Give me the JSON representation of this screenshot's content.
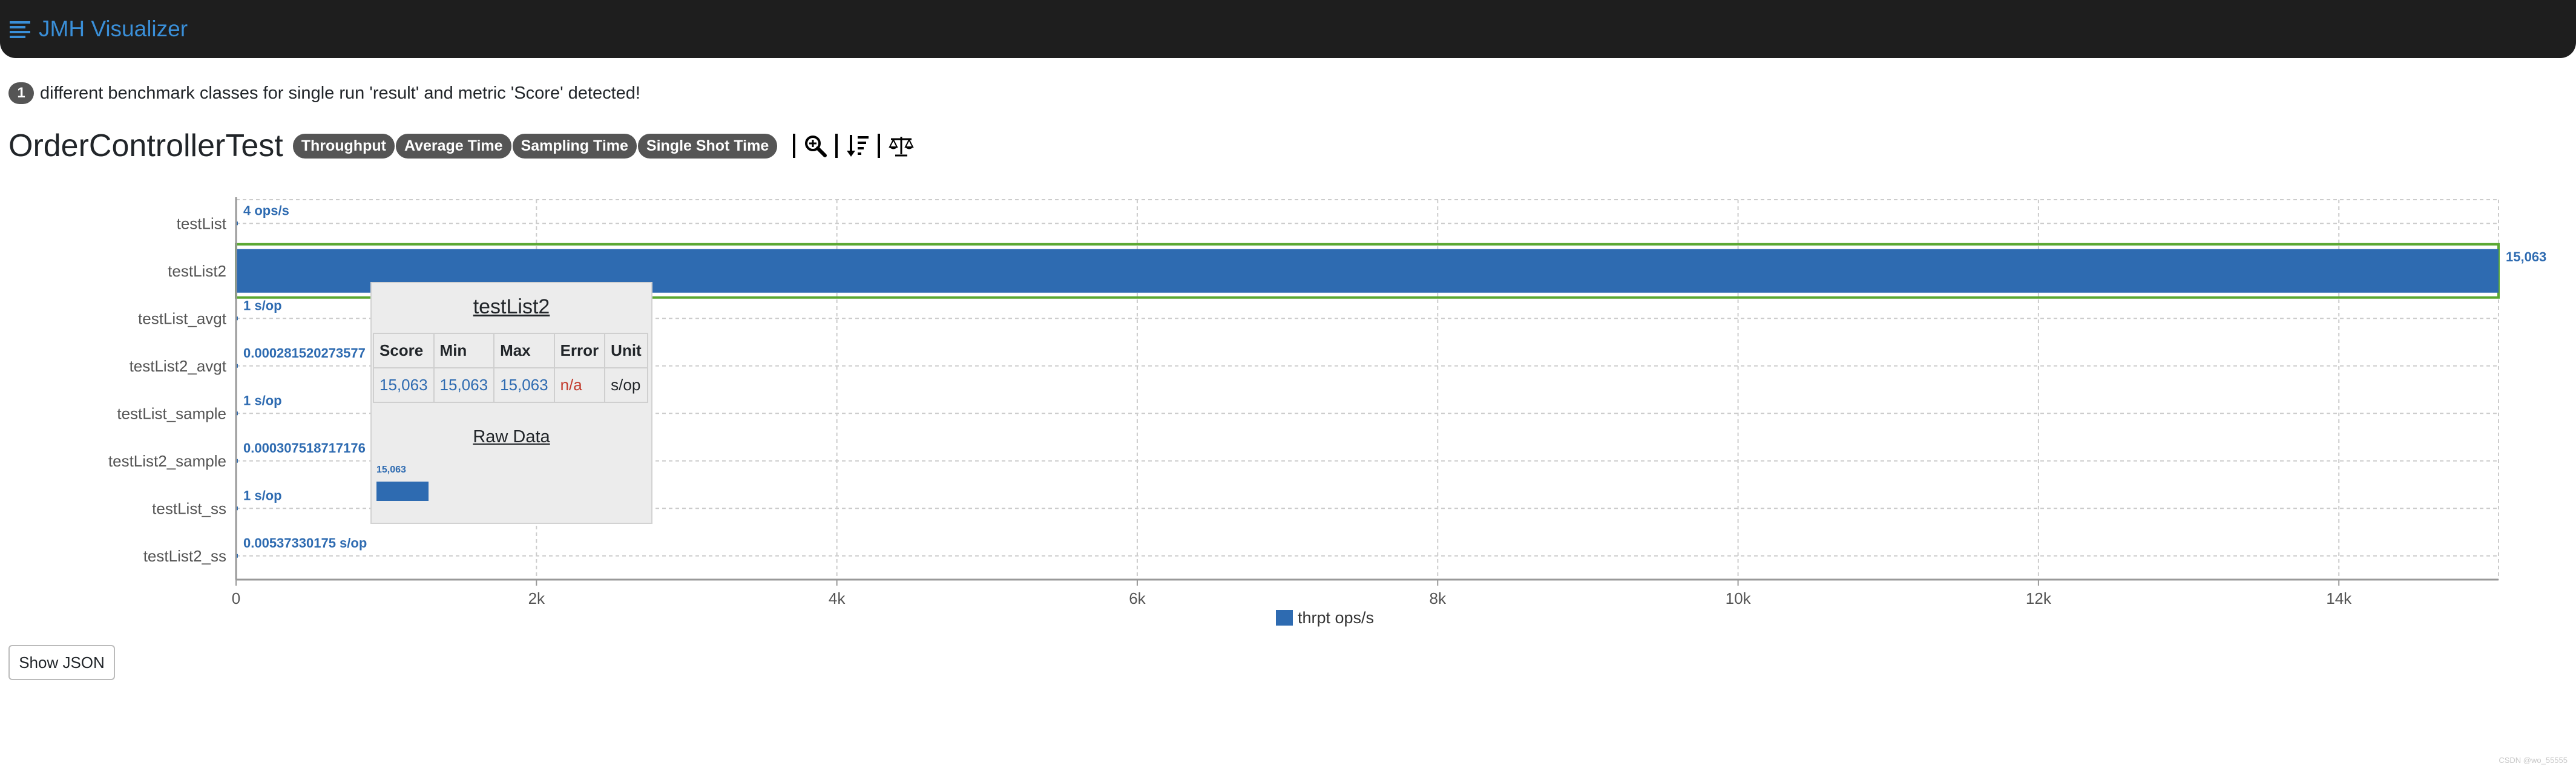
{
  "app": {
    "title": "JMH Visualizer"
  },
  "info": {
    "count": "1",
    "message": "different benchmark classes for single run 'result' and metric 'Score' detected!"
  },
  "benchmark": {
    "title": "OrderControllerTest",
    "modes": [
      "Throughput",
      "Average Time",
      "Sampling Time",
      "Single Shot Time"
    ]
  },
  "tool_icons": [
    "zoom-in-icon",
    "sort-icon",
    "balance-scale-icon"
  ],
  "chart_data": {
    "type": "bar",
    "orientation": "horizontal",
    "categories": [
      "testList",
      "testList2",
      "testList_avgt",
      "testList2_avgt",
      "testList_sample",
      "testList2_sample",
      "testList_ss",
      "testList2_ss"
    ],
    "series": [
      {
        "name": "thrpt ops/s",
        "values": [
          4,
          15063,
          1,
          0.000281520273577,
          1,
          0.000307518717176,
          1,
          0.00537330175
        ]
      }
    ],
    "bar_labels": [
      "4 ops/s",
      "15,063",
      "1 s/op",
      "0.000281520273577",
      "1 s/op",
      "0.000307518717176",
      "1 s/op",
      "0.00537330175 s/op"
    ],
    "xlim": [
      0,
      15063
    ],
    "x_ticks": [
      0,
      2000,
      4000,
      6000,
      8000,
      10000,
      12000,
      14000
    ],
    "x_tick_labels": [
      "0",
      "2k",
      "4k",
      "6k",
      "8k",
      "10k",
      "12k",
      "14k"
    ],
    "grid": true,
    "legend": "bottom-center",
    "colors": {
      "bar": "#2e6bb1",
      "highlight": "#5aa832"
    }
  },
  "tooltip": {
    "title": "testList2",
    "headers": [
      "Score",
      "Min",
      "Max",
      "Error",
      "Unit"
    ],
    "row": [
      "15,063",
      "15,063",
      "15,063",
      "n/a",
      "s/op"
    ],
    "raw_title": "Raw Data",
    "raw_value_label": "15,063",
    "raw_values": [
      15063
    ]
  },
  "buttons": {
    "show_json": "Show JSON"
  },
  "watermark": "CSDN @wo_55555"
}
